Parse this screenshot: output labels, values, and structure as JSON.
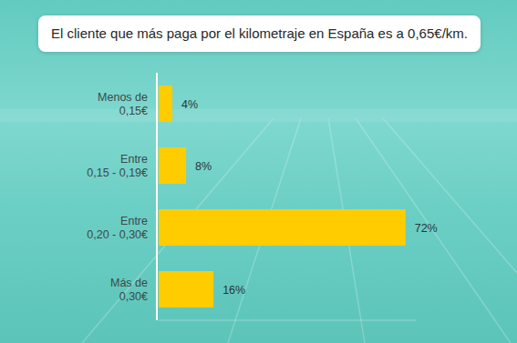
{
  "chart_data": {
    "type": "bar",
    "orientation": "horizontal",
    "title": "El cliente que más paga por el kilometraje en España es a 0,65€/km.",
    "categories": [
      "Menos de\n0,15€",
      "Entre\n0,15 - 0,19€",
      "Entre\n0,20 - 0,30€",
      "Más de\n0,30€"
    ],
    "values": [
      4,
      8,
      72,
      16
    ],
    "value_labels": [
      "4%",
      "8%",
      "72%",
      "16%"
    ],
    "data_labels": true,
    "color": "#ffcc00",
    "xlim": [
      0,
      75
    ],
    "grid": false,
    "tick_labels": "y"
  }
}
